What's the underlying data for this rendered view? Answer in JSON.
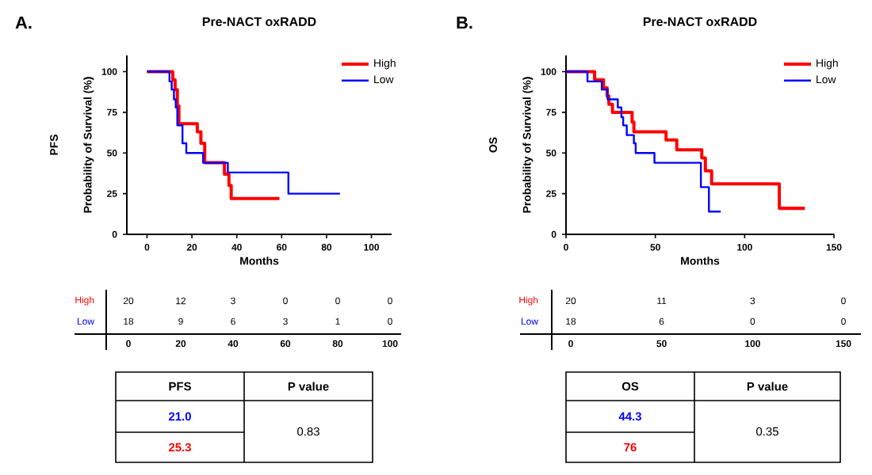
{
  "chart_data": [
    {
      "type": "step",
      "title": "Pre-NACT oxRADD",
      "xlabel": "Months",
      "ylabel": "Probability of Survival (%)",
      "xlim": [
        -9,
        109
      ],
      "ylim": [
        0,
        110
      ],
      "xticks": [
        0,
        20,
        40,
        60,
        80,
        100
      ],
      "yticks": [
        0,
        25,
        50,
        75,
        100
      ],
      "legend": "top right",
      "series": [
        {
          "name": "High",
          "color": "#ff0000",
          "x": [
            0,
            11.5,
            12.5,
            13.5,
            14.2,
            22.4,
            24,
            25.7,
            34.5,
            36.5,
            37.5,
            59
          ],
          "values": [
            100,
            95,
            89,
            79,
            68,
            63,
            56,
            44,
            37,
            30,
            22,
            22
          ]
        },
        {
          "name": "Low",
          "color": "#0000ff",
          "x": [
            0,
            10,
            11,
            12,
            12.8,
            13.5,
            15.8,
            17.5,
            25,
            36,
            63,
            86
          ],
          "values": [
            100,
            94,
            89,
            83,
            78,
            67,
            56,
            50,
            44,
            38,
            25,
            25
          ]
        }
      ],
      "annotations": [
        "A.",
        "PFS",
        "High",
        "Low",
        "20",
        "12",
        "3",
        "0",
        "0",
        "0",
        "18",
        "9",
        "6",
        "3",
        "1",
        "0",
        "0",
        "20",
        "40",
        "60",
        "80",
        "100",
        "PFS",
        "P value",
        "21.0",
        "25.3",
        "0.83"
      ]
    },
    {
      "type": "step",
      "title": "Pre-NACT oxRADD",
      "xlabel": "Months",
      "ylabel": "Probability of Survival (%)",
      "xlim": [
        0,
        150
      ],
      "ylim": [
        0,
        110
      ],
      "xticks": [
        0,
        50,
        100,
        150
      ],
      "yticks": [
        0,
        25,
        50,
        75,
        100
      ],
      "legend": "top right",
      "series": [
        {
          "name": "High",
          "color": "#ff0000",
          "x": [
            0,
            16,
            21,
            23,
            24,
            26,
            37,
            38,
            56,
            62,
            76,
            78,
            81.5,
            119.4,
            133.7
          ],
          "values": [
            100,
            95,
            90,
            85,
            80,
            75,
            69,
            63,
            58,
            52,
            47,
            39,
            31,
            16,
            16
          ]
        },
        {
          "name": "Low",
          "color": "#0000ff",
          "x": [
            0,
            12,
            20,
            23.3,
            29,
            31,
            32,
            34,
            38,
            39,
            49.5,
            75.5,
            80,
            86.6
          ],
          "values": [
            100,
            94,
            89,
            83,
            78,
            72,
            67,
            61,
            56,
            50,
            44,
            29,
            14,
            14
          ]
        }
      ],
      "annotations": [
        "B.",
        "OS",
        "High",
        "Low",
        "20",
        "11",
        "3",
        "0",
        "18",
        "6",
        "0",
        "0",
        "0",
        "50",
        "100",
        "150",
        "OS",
        "P value",
        "44.3",
        "76",
        "0.35"
      ]
    }
  ]
}
